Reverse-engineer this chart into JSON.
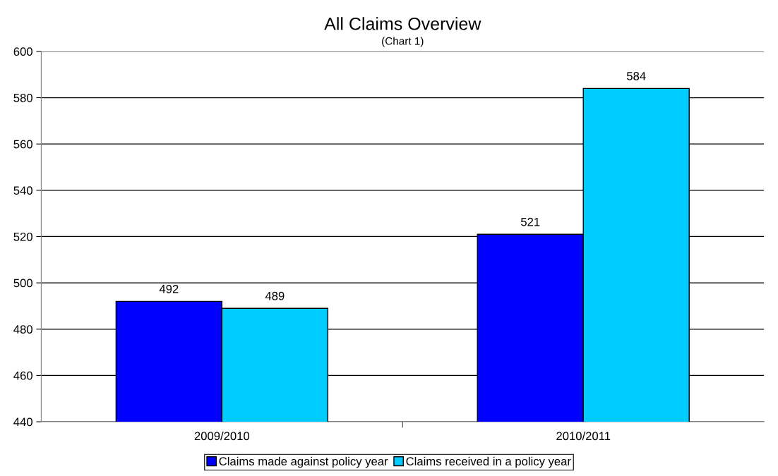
{
  "chart_data": {
    "type": "bar",
    "title": "All Claims Overview",
    "subtitle": "(Chart 1)",
    "categories": [
      "2009/2010",
      "2010/2011"
    ],
    "series": [
      {
        "name": "Claims made against policy year",
        "color": "#0000ff",
        "values": [
          492,
          521
        ]
      },
      {
        "name": "Claims received in a policy year",
        "color": "#00ccff",
        "values": [
          489,
          584
        ]
      }
    ],
    "ylim": [
      440,
      600
    ],
    "yticks": [
      440,
      460,
      480,
      500,
      520,
      540,
      560,
      580,
      600
    ],
    "grid": "y",
    "legend": "bottom",
    "data_labels": true
  }
}
